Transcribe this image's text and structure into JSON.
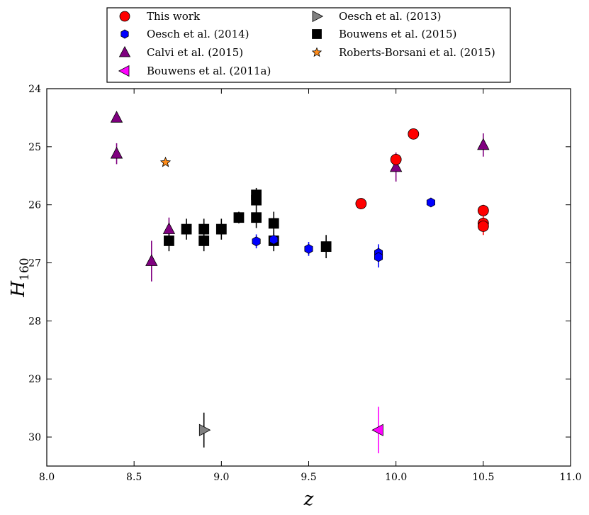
{
  "chart_data": {
    "type": "scatter",
    "xlabel": "z",
    "ylabel": "H",
    "ylabel_subscript": "160",
    "xlim": [
      8.0,
      11.0
    ],
    "ylim_inverted": [
      30.5,
      24.0
    ],
    "x_ticks": [
      8.0,
      8.5,
      9.0,
      9.5,
      10.0,
      10.5,
      11.0
    ],
    "x_tick_labels": [
      "8.0",
      "8.5",
      "9.0",
      "9.5",
      "10.0",
      "10.5",
      "11.0"
    ],
    "y_ticks": [
      24,
      25,
      26,
      27,
      28,
      29,
      30
    ],
    "y_tick_labels": [
      "24",
      "25",
      "26",
      "27",
      "28",
      "29",
      "30"
    ],
    "grid": false,
    "legend_position": "top-center",
    "series": [
      {
        "name": "This work",
        "marker": "circle",
        "color": "#ff0000",
        "edge": "#000000",
        "points": [
          {
            "x": 9.8,
            "y": 25.98,
            "err": 0
          },
          {
            "x": 10.0,
            "y": 25.22,
            "err": 0.1
          },
          {
            "x": 10.1,
            "y": 24.78,
            "err": 0
          },
          {
            "x": 10.5,
            "y": 26.1,
            "err": 0.1
          },
          {
            "x": 10.5,
            "y": 26.32,
            "err": 0.12
          },
          {
            "x": 10.5,
            "y": 26.37,
            "err": 0.15
          }
        ]
      },
      {
        "name": "Oesch et al. (2014)",
        "marker": "hexagon",
        "color": "#0000ff",
        "edge": "#000000",
        "points": [
          {
            "x": 9.2,
            "y": 26.63,
            "err": 0.12
          },
          {
            "x": 9.3,
            "y": 26.6,
            "err": 0.12
          },
          {
            "x": 9.5,
            "y": 26.76,
            "err": 0.12
          },
          {
            "x": 9.9,
            "y": 26.83,
            "err": 0.15
          },
          {
            "x": 9.9,
            "y": 26.9,
            "err": 0.18
          },
          {
            "x": 10.2,
            "y": 25.96,
            "err": 0
          }
        ]
      },
      {
        "name": "Calvi et al. (2015)",
        "marker": "triangle-up",
        "color": "#800080",
        "edge": "#000000",
        "points": [
          {
            "x": 8.4,
            "y": 24.5,
            "err": 0
          },
          {
            "x": 8.4,
            "y": 25.12,
            "err": 0.18
          },
          {
            "x": 8.6,
            "y": 26.97,
            "err": 0.35
          },
          {
            "x": 8.7,
            "y": 26.42,
            "err": 0.2
          },
          {
            "x": 10.0,
            "y": 25.35,
            "err": 0.25
          },
          {
            "x": 10.5,
            "y": 24.97,
            "err": 0.2
          }
        ]
      },
      {
        "name": "Bouwens et al. (2011a)",
        "marker": "triangle-left",
        "color": "#ff00ff",
        "edge": "#000000",
        "points": [
          {
            "x": 9.9,
            "y": 29.88,
            "err": 0.4
          }
        ]
      },
      {
        "name": "Oesch et al. (2013)",
        "marker": "triangle-right",
        "color": "#808080",
        "edge": "#000000",
        "points": [
          {
            "x": 8.9,
            "y": 29.88,
            "err": 0.3
          }
        ]
      },
      {
        "name": "Bouwens et al. (2015)",
        "marker": "square",
        "color": "#000000",
        "edge": "#000000",
        "points": [
          {
            "x": 8.7,
            "y": 26.62,
            "err": 0.18
          },
          {
            "x": 8.8,
            "y": 26.42,
            "err": 0.18
          },
          {
            "x": 8.9,
            "y": 26.42,
            "err": 0.18
          },
          {
            "x": 8.9,
            "y": 26.62,
            "err": 0.18
          },
          {
            "x": 9.0,
            "y": 26.42,
            "err": 0.18
          },
          {
            "x": 9.1,
            "y": 26.22,
            "err": 0.1
          },
          {
            "x": 9.2,
            "y": 25.83,
            "err": 0.12
          },
          {
            "x": 9.2,
            "y": 25.92,
            "err": 0.12
          },
          {
            "x": 9.2,
            "y": 26.22,
            "err": 0.18
          },
          {
            "x": 9.3,
            "y": 26.32,
            "err": 0.2
          },
          {
            "x": 9.3,
            "y": 26.62,
            "err": 0.18
          },
          {
            "x": 9.6,
            "y": 26.72,
            "err": 0.2
          }
        ]
      },
      {
        "name": "Roberts-Borsani et al. (2015)",
        "marker": "star",
        "color": "#ff8c1a",
        "edge": "#000000",
        "points": [
          {
            "x": 8.68,
            "y": 25.27,
            "err": 0
          }
        ]
      }
    ],
    "legend_order": [
      0,
      4,
      1,
      5,
      2,
      6,
      3
    ]
  }
}
